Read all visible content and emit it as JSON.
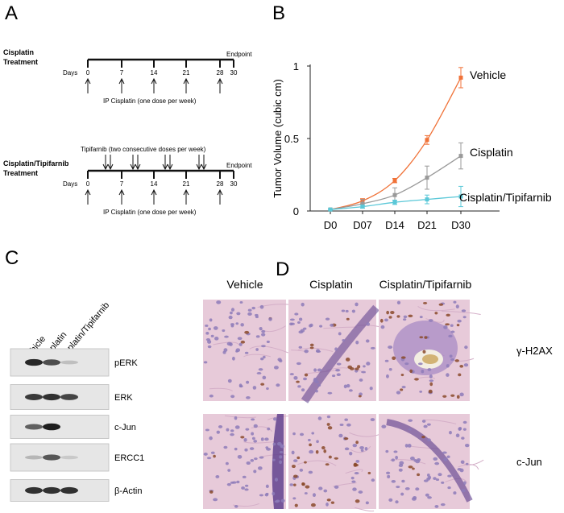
{
  "panels": {
    "a": {
      "letter": "A"
    },
    "b": {
      "letter": "B"
    },
    "c": {
      "letter": "C"
    },
    "d": {
      "letter": "D"
    }
  },
  "timeline_top": {
    "title_line1": "Cisplatin",
    "title_line2": "Treatment",
    "days_label": "Days",
    "ticks": [
      "0",
      "7",
      "14",
      "21",
      "28",
      "30"
    ],
    "endpoint": "Endpoint",
    "dose_label": "IP Cisplatin (one dose per week)"
  },
  "timeline_bottom": {
    "title_line1": "Cisplatin/Tipifarnib",
    "title_line2": "Treatment",
    "tipifarnib_label": "Tipifarnib (two consecutive doses per week)",
    "days_label": "Days",
    "ticks": [
      "0",
      "7",
      "14",
      "21",
      "28",
      "30"
    ],
    "endpoint": "Endpoint",
    "dose_label": "IP Cisplatin (one dose per week)"
  },
  "chart_data": {
    "type": "line",
    "ylabel": "Tumor Volume (cubic cm)",
    "xlabel": "",
    "categories": [
      "D0",
      "D07",
      "D14",
      "D21",
      "D30"
    ],
    "y_ticks": [
      "0",
      "0.5",
      "1"
    ],
    "ylim": [
      0,
      1
    ],
    "grid": false,
    "legend": "inline labels at line ends",
    "series": [
      {
        "name": "Vehicle",
        "color": "#f07238",
        "values": [
          0.01,
          0.07,
          0.21,
          0.49,
          0.92
        ],
        "errors": [
          0.005,
          0.015,
          0.015,
          0.03,
          0.07
        ]
      },
      {
        "name": "Cisplatin",
        "color": "#999999",
        "values": [
          0.01,
          0.05,
          0.11,
          0.23,
          0.38
        ],
        "errors": [
          0.005,
          0.03,
          0.05,
          0.08,
          0.09
        ]
      },
      {
        "name": "Cisplatin/Tipifarnib",
        "color": "#5bc8d8",
        "values": [
          0.01,
          0.03,
          0.06,
          0.08,
          0.1
        ],
        "errors": [
          0.005,
          0.01,
          0.015,
          0.03,
          0.07
        ]
      }
    ]
  },
  "western_blot": {
    "lanes": [
      "Vehicle",
      "Cisplatin",
      "Cisplatin/Tipifarnib"
    ],
    "rows": [
      {
        "label": "pERK",
        "intensity": [
          0.9,
          0.7,
          0.1
        ]
      },
      {
        "label": "ERK",
        "intensity": [
          0.8,
          0.85,
          0.75
        ]
      },
      {
        "label": "c-Jun",
        "intensity": [
          0.6,
          0.95,
          0.0
        ]
      },
      {
        "label": "ERCC1",
        "intensity": [
          0.15,
          0.65,
          0.05
        ]
      },
      {
        "label": "β-Actin",
        "intensity": [
          0.85,
          0.85,
          0.85
        ]
      }
    ]
  },
  "histology": {
    "columns": [
      "Vehicle",
      "Cisplatin",
      "Cisplatin/Tipifarnib"
    ],
    "rows": [
      "γ-H2AX",
      "c-Jun"
    ],
    "colors": {
      "tissue_pink": "#e7cad9",
      "nuclei_blue": "#8d7bb8",
      "brown_stain": "#8a4a2a",
      "dark_purple": "#5a3a8a"
    }
  }
}
